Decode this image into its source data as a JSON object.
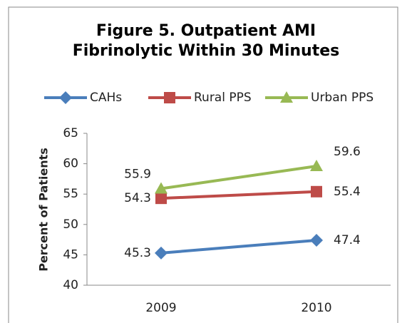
{
  "chart_data": {
    "type": "line",
    "title": "Figure 5. Outpatient AMI Fibrinolytic Within 30 Minutes",
    "y_label": "Percent of Patients",
    "categories": [
      "2009",
      "2010"
    ],
    "series": [
      {
        "name": "CAHs",
        "color": "#4a7ebb",
        "marker": "diamond",
        "values": [
          45.3,
          47.4
        ]
      },
      {
        "name": "Rural PPS",
        "color": "#be4b48",
        "marker": "square",
        "values": [
          54.3,
          55.4
        ]
      },
      {
        "name": "Urban PPS",
        "color": "#98b954",
        "marker": "triangle",
        "values": [
          55.9,
          59.6
        ]
      }
    ],
    "ylim": [
      40,
      65
    ],
    "yticks": [
      40,
      45,
      50,
      55,
      60,
      65
    ],
    "grid": false,
    "legend": "top"
  }
}
